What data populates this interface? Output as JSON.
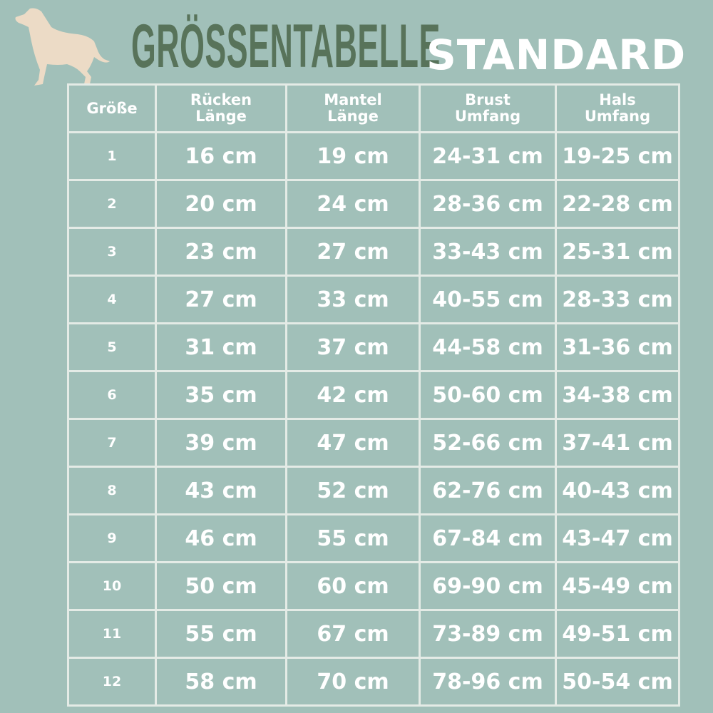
{
  "colors": {
    "background": "#a1c0b9",
    "title": "#58735a",
    "dog": "#ecdbc6",
    "grid": "#e4ebe6",
    "text": "#ffffff"
  },
  "title": "GRÖSSENTABELLE",
  "subtitle": "STANDARD",
  "icon": "dog-silhouette-icon",
  "headers": [
    {
      "line1": "Größe",
      "line2": ""
    },
    {
      "line1": "Rücken",
      "line2": "Länge"
    },
    {
      "line1": "Mantel",
      "line2": "Länge"
    },
    {
      "line1": "Brust",
      "line2": "Umfang"
    },
    {
      "line1": "Hals",
      "line2": "Umfang"
    }
  ],
  "rows": [
    [
      "1",
      "16 cm",
      "19 cm",
      "24-31 cm",
      "19-25 cm"
    ],
    [
      "2",
      "20 cm",
      "24 cm",
      "28-36 cm",
      "22-28 cm"
    ],
    [
      "3",
      "23 cm",
      "27 cm",
      "33-43 cm",
      "25-31 cm"
    ],
    [
      "4",
      "27 cm",
      "33 cm",
      "40-55 cm",
      "28-33 cm"
    ],
    [
      "5",
      "31 cm",
      "37 cm",
      "44-58 cm",
      "31-36 cm"
    ],
    [
      "6",
      "35 cm",
      "42 cm",
      "50-60 cm",
      "34-38 cm"
    ],
    [
      "7",
      "39 cm",
      "47 cm",
      "52-66 cm",
      "37-41 cm"
    ],
    [
      "8",
      "43 cm",
      "52 cm",
      "62-76 cm",
      "40-43 cm"
    ],
    [
      "9",
      "46 cm",
      "55 cm",
      "67-84 cm",
      "43-47 cm"
    ],
    [
      "10",
      "50 cm",
      "60 cm",
      "69-90 cm",
      "45-49 cm"
    ],
    [
      "11",
      "55 cm",
      "67 cm",
      "73-89 cm",
      "49-51 cm"
    ],
    [
      "12",
      "58 cm",
      "70 cm",
      "78-96 cm",
      "50-54 cm"
    ]
  ]
}
